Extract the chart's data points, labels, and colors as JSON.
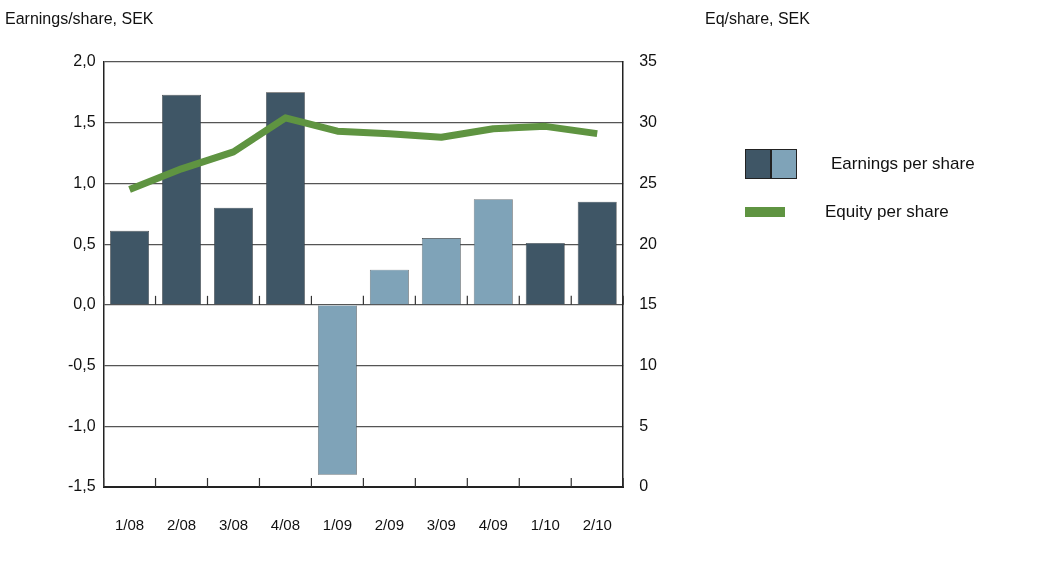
{
  "chart_data": {
    "type": "bar",
    "ylabel": "Earnings/share, SEK",
    "y2label": "Eq/share, SEK",
    "categories": [
      "1/08",
      "2/08",
      "3/08",
      "4/08",
      "1/09",
      "2/09",
      "3/09",
      "4/09",
      "1/10",
      "2/10"
    ],
    "series": [
      {
        "name": "Earnings per share",
        "colors": [
          "#3f5666",
          "#3f5666",
          "#3f5666",
          "#3f5666",
          "#7fa3b8",
          "#7fa3b8",
          "#7fa3b8",
          "#7fa3b8",
          "#3f5666",
          "#3f5666"
        ],
        "values": [
          0.61,
          1.73,
          0.8,
          1.75,
          -1.4,
          0.29,
          0.55,
          0.87,
          0.51,
          0.85
        ]
      },
      {
        "name": "Equity per share",
        "type": "line",
        "axis": "y2",
        "color": "#5f9441",
        "values": [
          24.5,
          26.2,
          27.6,
          30.4,
          29.3,
          29.1,
          28.8,
          29.5,
          29.7,
          29.1
        ]
      }
    ],
    "ylim": [
      -1.5,
      2
    ],
    "yticks": [
      {
        "value": -1.5,
        "label": "-1,5"
      },
      {
        "value": -1,
        "label": "-1,0"
      },
      {
        "value": -0.5,
        "label": "-0,5"
      },
      {
        "value": 0,
        "label": "0,0"
      },
      {
        "value": 0.5,
        "label": "0,5"
      },
      {
        "value": 1,
        "label": "1,0"
      },
      {
        "value": 1.5,
        "label": "1,5"
      },
      {
        "value": 2,
        "label": "2,0"
      }
    ],
    "y2lim": [
      0,
      35
    ],
    "y2ticks": [
      0,
      5,
      10,
      15,
      20,
      25,
      30,
      35
    ],
    "grid": "y",
    "legend": "right",
    "marker": "none"
  }
}
